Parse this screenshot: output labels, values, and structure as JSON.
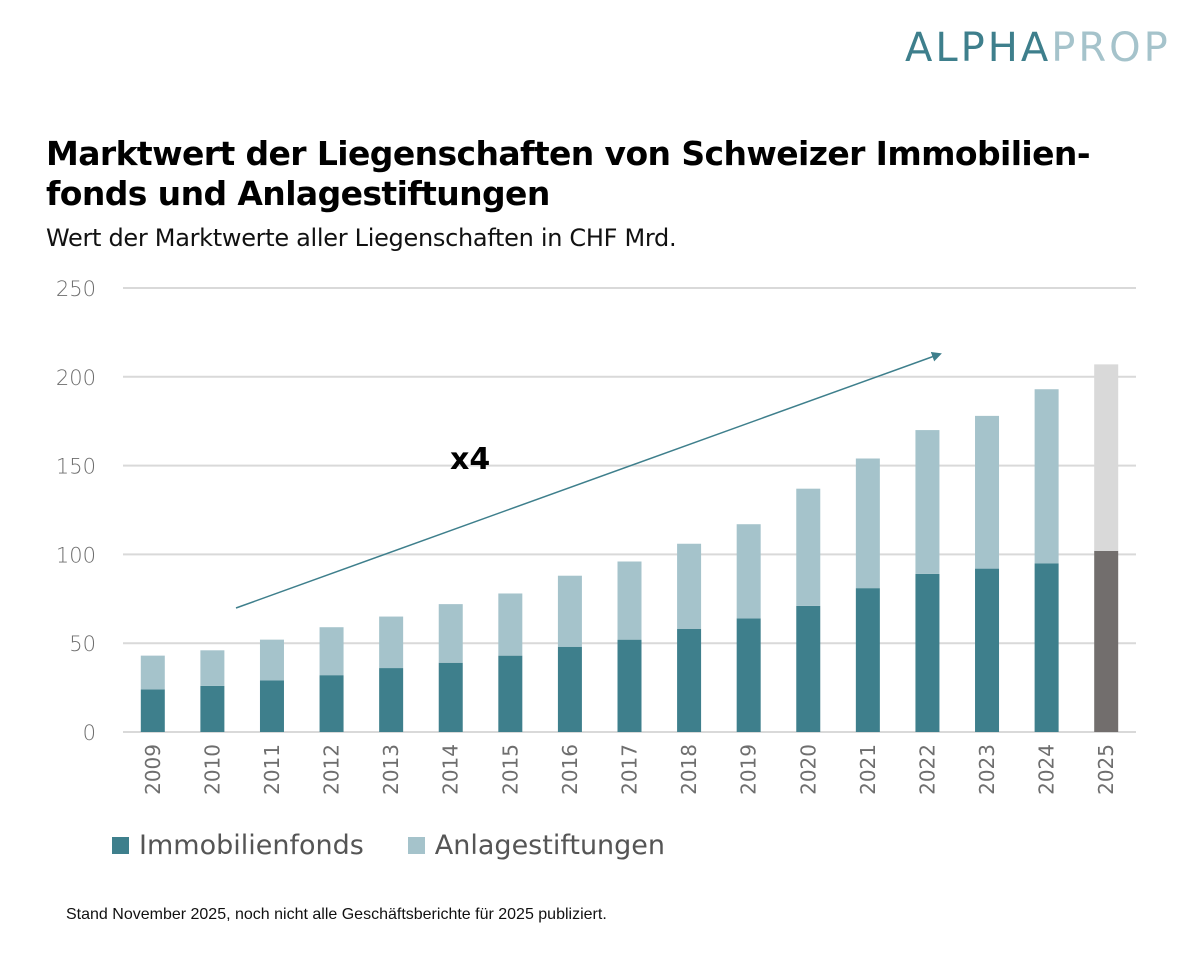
{
  "logo": {
    "part1": "ALPHA",
    "part2": "PROP"
  },
  "colors": {
    "immobilienfonds": "#3e7f8c",
    "anlagestiftungen": "#a5c3cb",
    "estimate_immobilienfonds": "#726e6d",
    "estimate_anlagestiftungen": "#d9d9d9",
    "arrow": "#3e7f8c",
    "grid": "#d9d9d9"
  },
  "footnote": "Stand November 2025, noch nicht alle Geschäftsberichte für 2025 publiziert.",
  "chart_data": {
    "type": "bar",
    "stacked": true,
    "title": "Marktwert der Liegenschaften von Schweizer Immobilien-fonds und Anlagestiftungen",
    "subtitle": "Wert der Marktwerte aller Liegenschaften in CHF Mrd.",
    "xlabel": "",
    "ylabel": "",
    "ylim": [
      0,
      250
    ],
    "yticks": [
      0,
      50,
      100,
      150,
      200,
      250
    ],
    "grid": true,
    "legend_position": "bottom-left",
    "categories": [
      "2009",
      "2010",
      "2011",
      "2012",
      "2013",
      "2014",
      "2015",
      "2016",
      "2017",
      "2018",
      "2019",
      "2020",
      "2021",
      "2022",
      "2023",
      "2024",
      "2025"
    ],
    "series": [
      {
        "name": "Immobilienfonds",
        "values": [
          24,
          26,
          29,
          32,
          36,
          39,
          43,
          48,
          52,
          58,
          64,
          71,
          81,
          89,
          92,
          95,
          102
        ]
      },
      {
        "name": "Anlagestiftungen",
        "values": [
          19,
          20,
          23,
          27,
          29,
          33,
          35,
          40,
          44,
          48,
          53,
          66,
          73,
          81,
          86,
          98,
          105
        ]
      }
    ],
    "highlight_category": "2025",
    "annotation": {
      "text": "x4",
      "type": "arrow",
      "from": {
        "x": "2010.5",
        "y": 70
      },
      "to": {
        "x": "2022.9",
        "y": 213
      }
    }
  }
}
